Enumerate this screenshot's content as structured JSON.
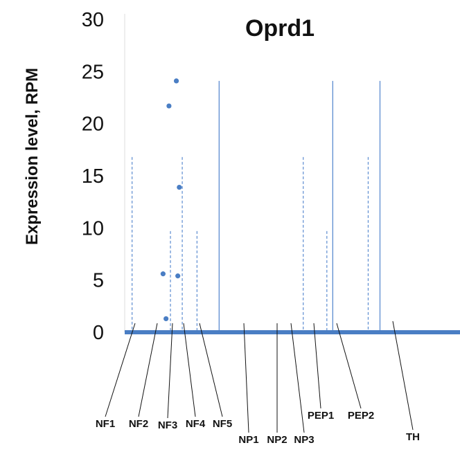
{
  "chart_data": {
    "type": "scatter",
    "title": "Oprd1",
    "xlabel": "",
    "ylabel": "Expression level, RPM",
    "ylim": [
      0,
      30
    ],
    "yticks": [
      "0",
      "5",
      "10",
      "15",
      "20",
      "25",
      "30"
    ],
    "grid": false,
    "categories": [
      "NF1",
      "NF2",
      "NF3",
      "NF4",
      "NF5",
      "NP1",
      "NP2",
      "NP3",
      "PEP1",
      "PEP2",
      "TH"
    ],
    "points": [
      {
        "x": 1.4,
        "y": 1.3
      },
      {
        "x": 1.3,
        "y": 5.6
      },
      {
        "x": 1.8,
        "y": 5.4
      },
      {
        "x": 1.85,
        "y": 13.9
      },
      {
        "x": 1.5,
        "y": 21.7
      },
      {
        "x": 1.75,
        "y": 24.1
      }
    ],
    "reference_lines": [
      {
        "x": 0.25,
        "y": 16.8,
        "style": "dashed"
      },
      {
        "x": 1.55,
        "y": 9.7,
        "style": "dashed"
      },
      {
        "x": 1.95,
        "y": 16.8,
        "style": "dashed"
      },
      {
        "x": 2.45,
        "y": 9.7,
        "style": "dashed"
      },
      {
        "x": 3.2,
        "y": 24.1,
        "style": "solid"
      },
      {
        "x": 6.05,
        "y": 16.8,
        "style": "dashed"
      },
      {
        "x": 6.85,
        "y": 9.7,
        "style": "dashed"
      },
      {
        "x": 7.05,
        "y": 24.1,
        "style": "solid"
      },
      {
        "x": 8.25,
        "y": 16.8,
        "style": "dashed"
      },
      {
        "x": 8.65,
        "y": 24.1,
        "style": "solid"
      }
    ],
    "colors": {
      "points": "#4a7ec4",
      "axis": "#4a7ec4",
      "lines": "#5b8bd0",
      "frame": "#dcdcdc",
      "leader": "#111111"
    }
  }
}
